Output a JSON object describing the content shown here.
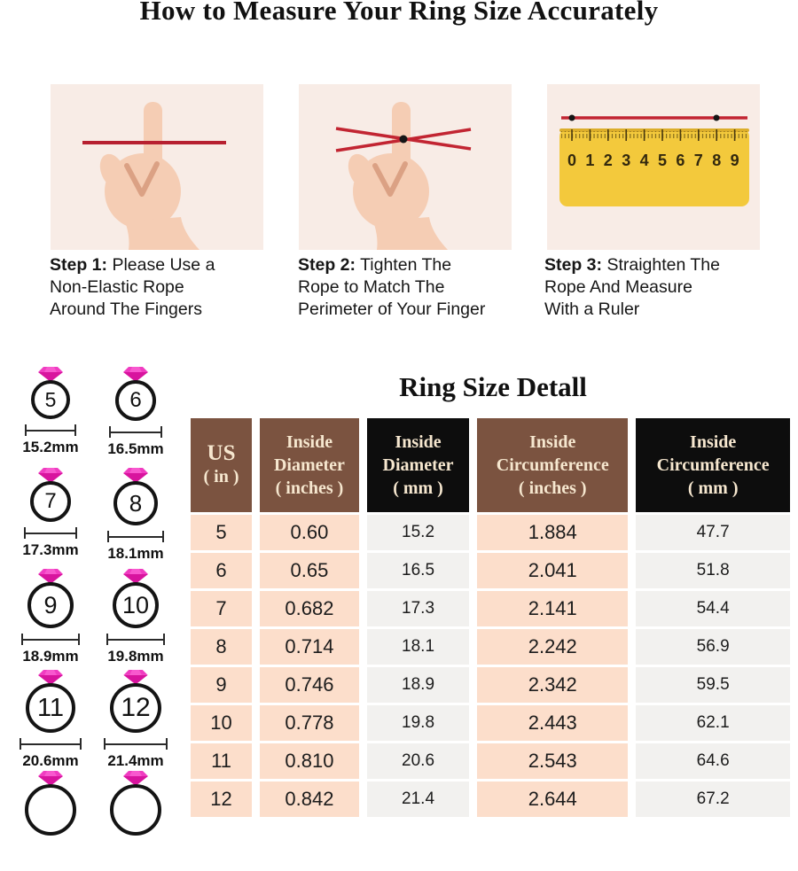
{
  "page": {
    "title": "How to Measure Your Ring Size Accurately"
  },
  "steps": [
    {
      "label": "Step 1:",
      "lines": [
        "Please Use a",
        "Non-Elastic Rope",
        "Around The Fingers"
      ],
      "illustration": "finger-with-straight-rope"
    },
    {
      "label": "Step 2:",
      "lines": [
        "Tighten The",
        "Rope to Match The",
        "Perimeter of Your Finger"
      ],
      "illustration": "finger-with-crossed-rope"
    },
    {
      "label": "Step 3:",
      "lines": [
        "Straighten The",
        "Rope And Measure",
        "With a Ruler"
      ],
      "illustration": "rope-on-ruler",
      "ruler_numbers": [
        "0",
        "1",
        "2",
        "3",
        "4",
        "5",
        "6",
        "7",
        "8",
        "9"
      ]
    }
  ],
  "ring_chart": {
    "title": "Ring Size Detall",
    "rings": [
      {
        "size": "5",
        "diameter_label": "15.2mm"
      },
      {
        "size": "6",
        "diameter_label": "16.5mm"
      },
      {
        "size": "7",
        "diameter_label": "17.3mm"
      },
      {
        "size": "8",
        "diameter_label": "18.1mm"
      },
      {
        "size": "9",
        "diameter_label": "18.9mm"
      },
      {
        "size": "10",
        "diameter_label": "19.8mm"
      },
      {
        "size": "11",
        "diameter_label": "20.6mm"
      },
      {
        "size": "12",
        "diameter_label": "21.4mm"
      },
      {
        "size": "",
        "diameter_label": ""
      },
      {
        "size": "",
        "diameter_label": ""
      }
    ]
  },
  "table": {
    "headers": [
      {
        "lines": [
          "US",
          "( in )"
        ],
        "bg": "brown"
      },
      {
        "lines": [
          "Inside",
          "Diameter",
          "( inches )"
        ],
        "bg": "brown"
      },
      {
        "lines": [
          "Inside",
          "Diameter",
          "( mm )"
        ],
        "bg": "black"
      },
      {
        "lines": [
          "Inside",
          "Circumference",
          "( inches )"
        ],
        "bg": "brown"
      },
      {
        "lines": [
          "Inside",
          "Circumference",
          "( mm )"
        ],
        "bg": "black"
      }
    ],
    "rows": [
      [
        "5",
        "0.60",
        "15.2",
        "1.884",
        "47.7"
      ],
      [
        "6",
        "0.65",
        "16.5",
        "2.041",
        "51.8"
      ],
      [
        "7",
        "0.682",
        "17.3",
        "2.141",
        "54.4"
      ],
      [
        "8",
        "0.714",
        "18.1",
        "2.242",
        "56.9"
      ],
      [
        "9",
        "0.746",
        "18.9",
        "2.342",
        "59.5"
      ],
      [
        "10",
        "0.778",
        "19.8",
        "2.443",
        "62.1"
      ],
      [
        "11",
        "0.810",
        "20.6",
        "2.543",
        "64.6"
      ],
      [
        "12",
        "0.842",
        "21.4",
        "2.644",
        "67.2"
      ]
    ]
  },
  "colors": {
    "rope_red": "#c22532",
    "ruler_yellow": "#f3c93c",
    "header_brown": "#7b5340",
    "header_black": "#0d0d0d",
    "header_text_cream": "#f6e7cf",
    "cell_peach": "#fcdecb",
    "cell_gray": "#f2f1ef",
    "diamond_pink": "#e820b4",
    "step_box_bg": "#f8ece6",
    "skin": "#f5cdb4"
  }
}
